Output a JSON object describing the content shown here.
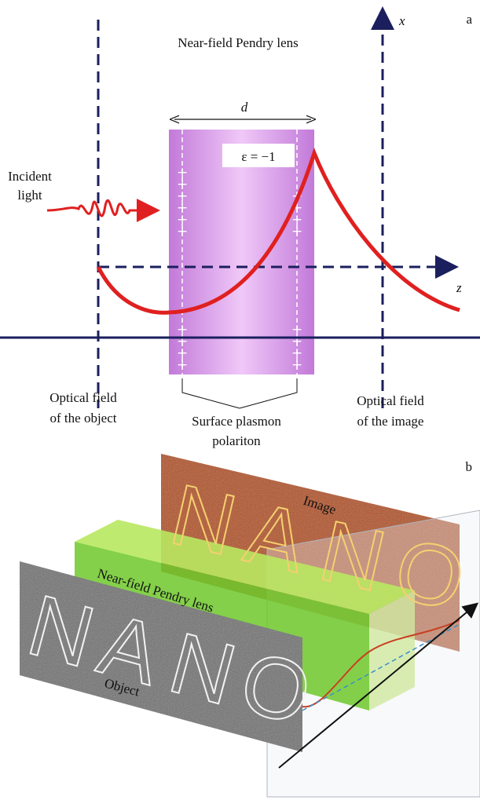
{
  "panel_a": {
    "label": "a",
    "axis_x": "x",
    "axis_z": "z",
    "title": "Near-field Pendry lens",
    "thickness": "d",
    "permittivity": "ε = −1",
    "incident": [
      "Incident",
      "light"
    ],
    "object_field": [
      "Optical field",
      "of the object"
    ],
    "plasmon": [
      "Surface plasmon",
      "polariton"
    ],
    "image_field": [
      "Optical field",
      "of the image"
    ]
  },
  "panel_b": {
    "label": "b",
    "image": "Image",
    "lens": "Near-field Pendry lens",
    "object": "Object",
    "letters": [
      "N",
      "A",
      "N",
      "O"
    ]
  }
}
